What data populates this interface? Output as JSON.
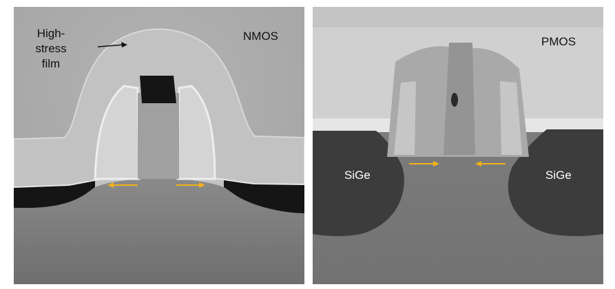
{
  "panels": {
    "nmos": {
      "label": "NMOS",
      "film_label": [
        "High-",
        "stress",
        "film"
      ],
      "strain_arrow_color": "#f2b21b"
    },
    "pmos": {
      "label": "PMOS",
      "sige_left": "SiGe",
      "sige_right": "SiGe",
      "strain_arrow_color": "#f2b21b"
    }
  },
  "colors": {
    "arrow": "#f2b21b",
    "film": "#c4c4c4",
    "substrate": "#787878",
    "void": "#1a1a1a"
  }
}
